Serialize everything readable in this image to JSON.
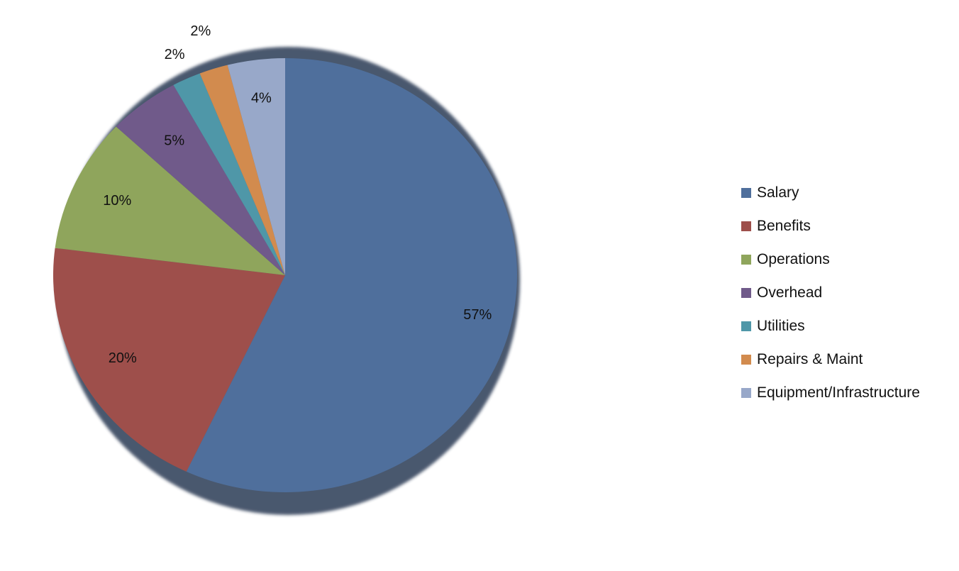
{
  "chart_data": {
    "type": "pie",
    "title": "",
    "legend_position": "right",
    "slices": [
      {
        "name": "Salary",
        "value": 57,
        "label": "57%",
        "color": "#4F6F9C"
      },
      {
        "name": "Benefits",
        "value": 20,
        "label": "20%",
        "color": "#9E4F4B"
      },
      {
        "name": "Operations",
        "value": 10,
        "label": "10%",
        "color": "#8FA55C"
      },
      {
        "name": "Overhead",
        "value": 5,
        "label": "5%",
        "color": "#705A8A"
      },
      {
        "name": "Utilities",
        "value": 2,
        "label": "2%",
        "color": "#4F97A8"
      },
      {
        "name": "Repairs & Maint",
        "value": 2,
        "label": "2%",
        "color": "#D28B4E"
      },
      {
        "name": "Equipment/Infrastructure",
        "value": 4,
        "label": "4%",
        "color": "#98A8C9"
      }
    ]
  }
}
